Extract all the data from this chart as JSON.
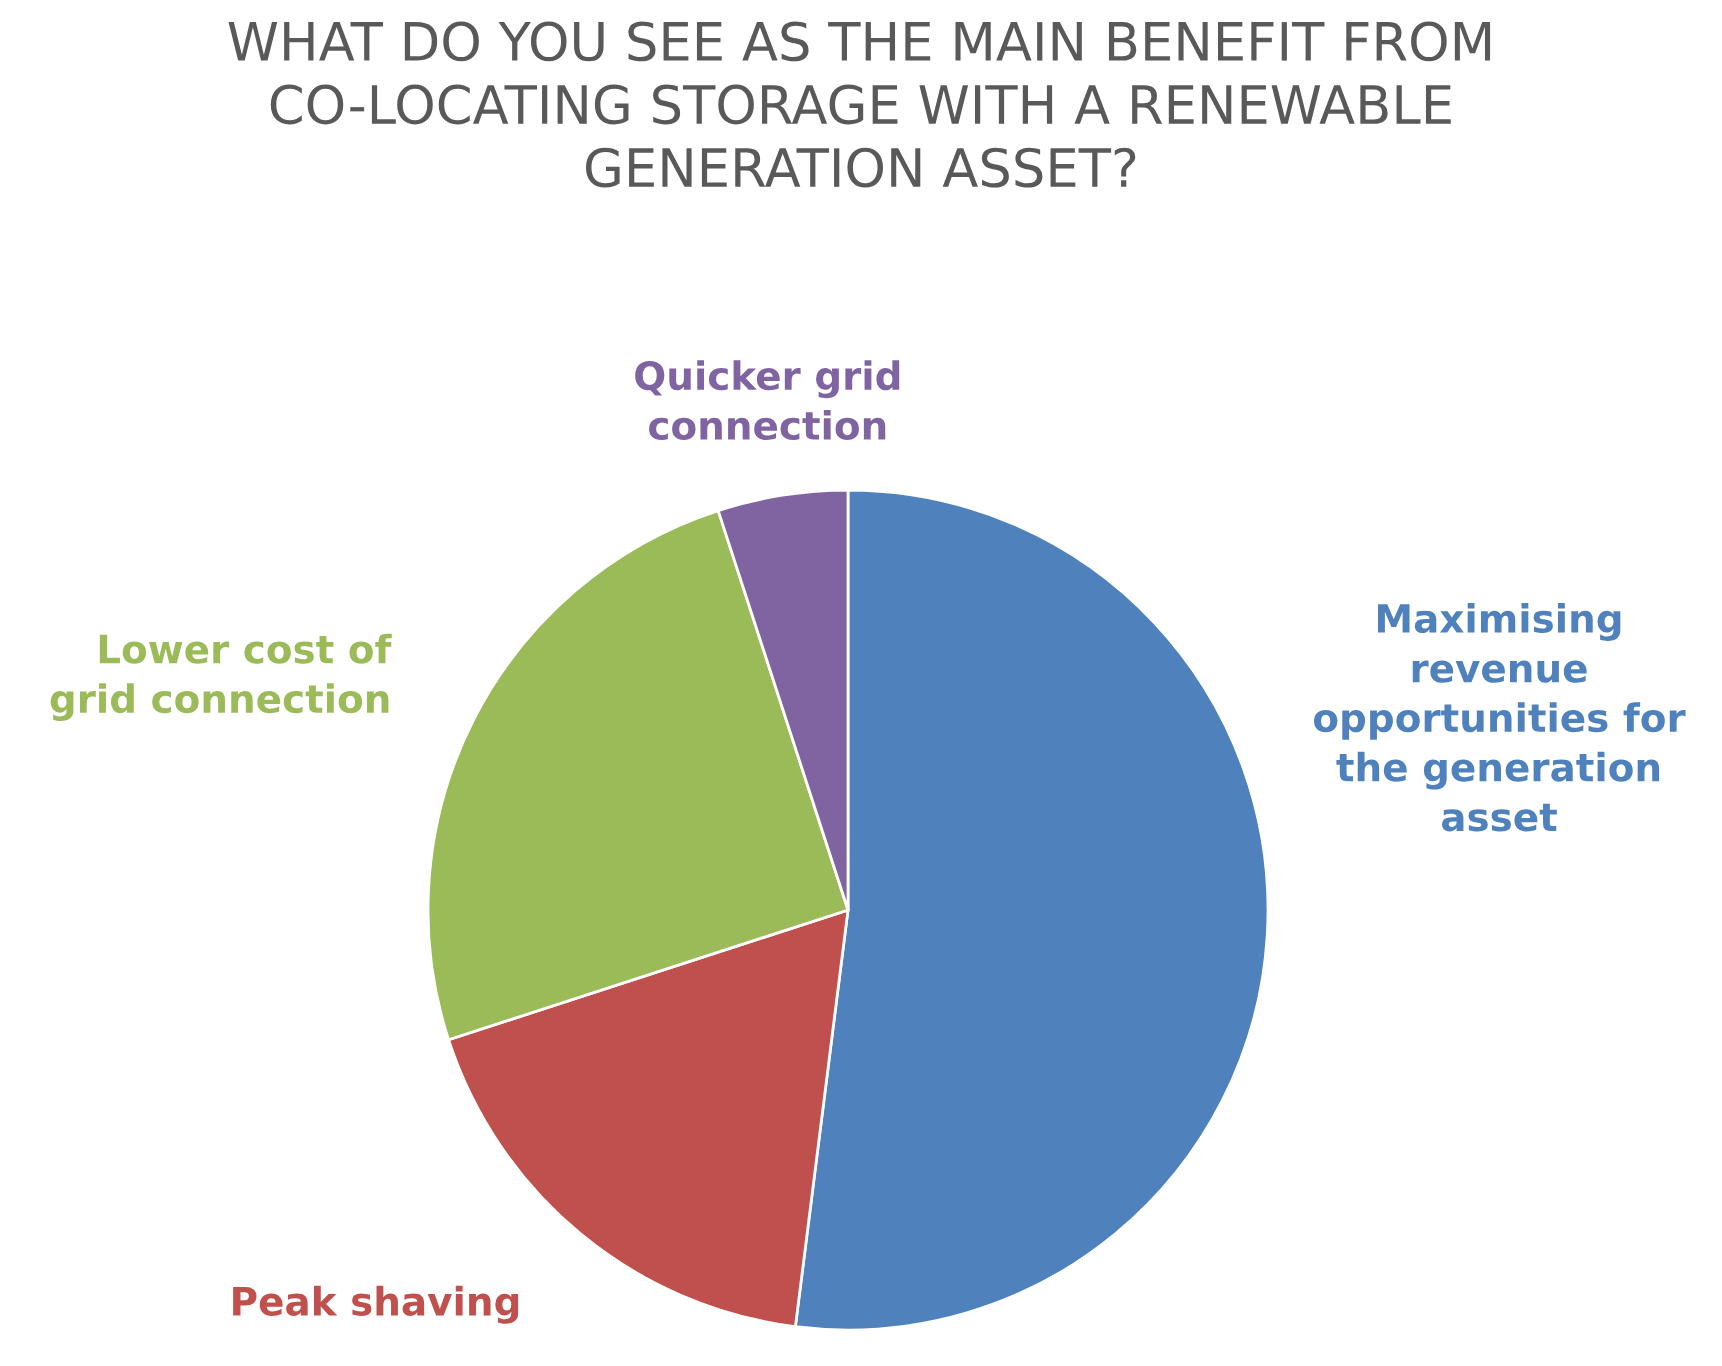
{
  "chart_data": {
    "type": "pie",
    "title": "WHAT DO YOU SEE AS THE MAIN BENEFIT FROM\nCO-LOCATING STORAGE WITH A RENEWABLE\nGENERATION ASSET?",
    "categories": [
      "Maximising\nrevenue\nopportunities for\nthe generation\nasset",
      "Peak shaving",
      "Lower cost of\ngrid connection",
      "Quicker grid\nconnection"
    ],
    "values": [
      52,
      18,
      25,
      5
    ],
    "colors": [
      "#4f81bd",
      "#c0504d",
      "#9bbb59",
      "#8064a2"
    ],
    "legend": false
  }
}
